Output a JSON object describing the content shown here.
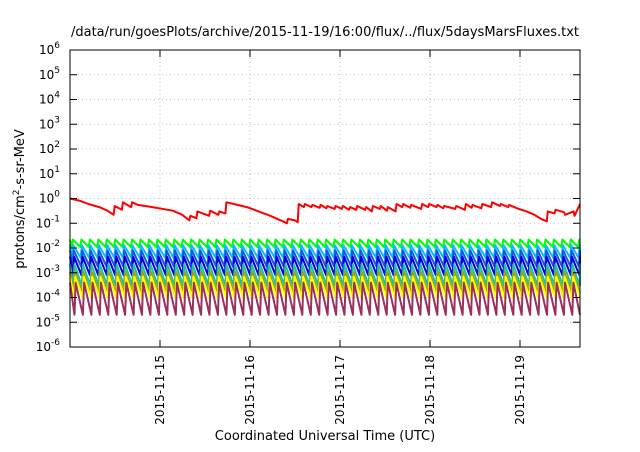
{
  "chart_data": {
    "type": "line",
    "title": "/data/run/goesPlots/archive/2015-11-19/16:00/flux/../flux/5daysMarsFluxes.txt",
    "xlabel": "Coordinated Universal Time (UTC)",
    "ylabel_parts": {
      "prefix": "protons/cm",
      "sup": "2",
      "suffix": "-s-sr-MeV"
    },
    "y_scale": "log",
    "ylim": [
      1e-06,
      1000000.0
    ],
    "xlim": [
      "2015-11-14T00:00",
      "2015-11-19T16:00"
    ],
    "grid": true,
    "legend": "none",
    "y_ticks": [
      {
        "value": 1e-06,
        "base": "10",
        "exp": "-6"
      },
      {
        "value": 1e-05,
        "base": "10",
        "exp": "-5"
      },
      {
        "value": 0.0001,
        "base": "10",
        "exp": "-4"
      },
      {
        "value": 0.001,
        "base": "10",
        "exp": "-3"
      },
      {
        "value": 0.01,
        "base": "10",
        "exp": "-2"
      },
      {
        "value": 0.1,
        "base": "10",
        "exp": "-1"
      },
      {
        "value": 1,
        "base": "10",
        "exp": "0"
      },
      {
        "value": 10,
        "base": "10",
        "exp": "1"
      },
      {
        "value": 100,
        "base": "10",
        "exp": "2"
      },
      {
        "value": 1000,
        "base": "10",
        "exp": "3"
      },
      {
        "value": 10000,
        "base": "10",
        "exp": "4"
      },
      {
        "value": 100000,
        "base": "10",
        "exp": "5"
      },
      {
        "value": 1000000,
        "base": "10",
        "exp": "6"
      }
    ],
    "x_ticks": [
      {
        "label": "2015-11-15",
        "value": "2015-11-15T00:00"
      },
      {
        "label": "2015-11-16",
        "value": "2015-11-16T00:00"
      },
      {
        "label": "2015-11-17",
        "value": "2015-11-17T00:00"
      },
      {
        "label": "2015-11-18",
        "value": "2015-11-18T00:00"
      },
      {
        "label": "2015-11-19",
        "value": "2015-11-19T00:00"
      }
    ],
    "series": [
      {
        "color": "#ff0000",
        "x": [
          "2015-11-14T00:00",
          "2015-11-14T02:46",
          "2015-11-14T04:52",
          "2015-11-14T07:49",
          "2015-11-14T10:00",
          "2015-11-14T11:38",
          "2015-11-14T11:55",
          "2015-11-14T13:50",
          "2015-11-14T14:07",
          "2015-11-14T16:17",
          "2015-11-14T16:34",
          "2015-11-14T18:10",
          "2015-11-14T21:58",
          "2015-11-15T03:24",
          "2015-11-15T05:56",
          "2015-11-15T07:49",
          "2015-11-15T08:06",
          "2015-11-15T09:42",
          "2015-11-15T09:59",
          "2015-11-15T13:05",
          "2015-11-15T13:22",
          "2015-11-15T15:33",
          "2015-11-15T15:50",
          "2015-11-15T17:26",
          "2015-11-15T17:43",
          "2015-11-15T19:41",
          "2015-11-15T23:10",
          "2015-11-16T05:24",
          "2015-11-16T08:13",
          "2015-11-16T09:50",
          "2015-11-16T10:07",
          "2015-11-16T12:00",
          "2015-11-16T12:43",
          "2015-11-16T12:59",
          "2015-11-16T14:22",
          "2015-11-16T14:38",
          "2015-11-16T16:22",
          "2015-11-16T16:39",
          "2015-11-16T18:34",
          "2015-11-16T18:50",
          "2015-11-16T20:22",
          "2015-11-16T20:38",
          "2015-11-16T22:34",
          "2015-11-16T22:50",
          "2015-11-17T00:29",
          "2015-11-17T00:46",
          "2015-11-17T02:24",
          "2015-11-17T02:41",
          "2015-11-17T04:19",
          "2015-11-17T04:36",
          "2015-11-17T06:41",
          "2015-11-17T06:58",
          "2015-11-17T08:29",
          "2015-11-17T08:46",
          "2015-11-17T10:36",
          "2015-11-17T10:53",
          "2015-11-17T12:29",
          "2015-11-17T12:46",
          "2015-11-17T14:48",
          "2015-11-17T15:05",
          "2015-11-17T16:36",
          "2015-11-17T16:53",
          "2015-11-17T18:43",
          "2015-11-17T19:00",
          "2015-11-17T21:38",
          "2015-11-17T21:55",
          "2015-11-17T23:31",
          "2015-11-17T23:48",
          "2015-11-18T01:43",
          "2015-11-18T02:00",
          "2015-11-18T03:31",
          "2015-11-18T03:48",
          "2015-11-18T06:43",
          "2015-11-18T07:00",
          "2015-11-18T09:17",
          "2015-11-18T09:34",
          "2015-11-18T11:05",
          "2015-11-18T11:22",
          "2015-11-18T13:41",
          "2015-11-18T13:58",
          "2015-11-18T16:17",
          "2015-11-18T16:34",
          "2015-11-18T18:38",
          "2015-11-18T18:55",
          "2015-11-18T20:50",
          "2015-11-18T21:07",
          "2015-11-18T23:14",
          "2015-11-19T01:46",
          "2015-11-19T03:50",
          "2015-11-19T05:38",
          "2015-11-19T07:08",
          "2015-11-19T07:25",
          "2015-11-19T09:12",
          "2015-11-19T09:29",
          "2015-11-19T11:46",
          "2015-11-19T12:02",
          "2015-11-19T14:17",
          "2015-11-19T14:34",
          "2015-11-19T16:00"
        ],
        "y": [
          1.0,
          0.8,
          0.6,
          0.45,
          0.32,
          0.22,
          0.5,
          0.35,
          0.7,
          0.45,
          0.7,
          0.55,
          0.45,
          0.32,
          0.22,
          0.13,
          0.2,
          0.16,
          0.3,
          0.2,
          0.32,
          0.22,
          0.3,
          0.25,
          0.7,
          0.6,
          0.45,
          0.2,
          0.13,
          0.1,
          0.15,
          0.13,
          0.11,
          0.6,
          0.45,
          0.6,
          0.45,
          0.55,
          0.42,
          0.55,
          0.4,
          0.5,
          0.38,
          0.5,
          0.38,
          0.5,
          0.35,
          0.45,
          0.35,
          0.5,
          0.35,
          0.45,
          0.3,
          0.5,
          0.38,
          0.5,
          0.32,
          0.45,
          0.3,
          0.6,
          0.45,
          0.6,
          0.42,
          0.55,
          0.38,
          0.6,
          0.45,
          0.6,
          0.45,
          0.55,
          0.4,
          0.5,
          0.38,
          0.5,
          0.35,
          0.6,
          0.42,
          0.55,
          0.4,
          0.6,
          0.45,
          0.7,
          0.5,
          0.6,
          0.45,
          0.55,
          0.4,
          0.3,
          0.22,
          0.15,
          0.12,
          0.3,
          0.25,
          0.35,
          0.28,
          0.22,
          0.3,
          0.2,
          0.6
        ]
      },
      {
        "color": "#00ff00",
        "peak": 0.022,
        "trough": 0.011
      },
      {
        "color": "#00bfff",
        "peak": 0.013,
        "trough": 0.004
      },
      {
        "color": "#1a56e0",
        "peak": 0.008,
        "trough": 0.0018
      },
      {
        "color": "#0000e0",
        "peak": 0.0045,
        "trough": 0.0008
      },
      {
        "color": "#20c0a0",
        "peak": 0.0022,
        "trough": 0.0003
      },
      {
        "color": "#a0a000",
        "peak": 0.0011,
        "trough": 0.00015
      },
      {
        "color": "#ffff00",
        "peak": 0.0007,
        "trough": 0.0001
      },
      {
        "color": "#9b3060",
        "peak": 0.0004,
        "trough": 2e-05
      }
    ]
  }
}
